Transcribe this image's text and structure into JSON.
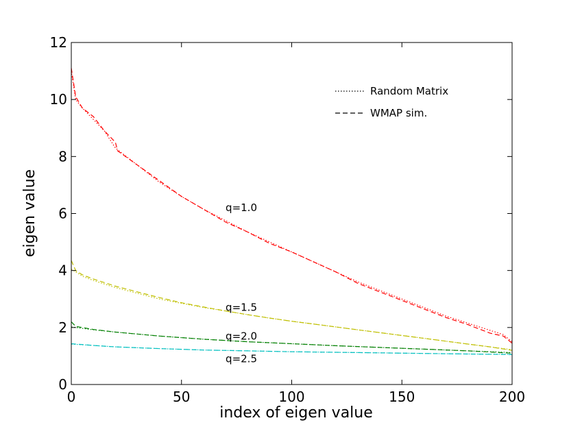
{
  "chart_data": {
    "type": "line",
    "title": "",
    "xlabel": "index of eigen value",
    "ylabel": "eigen value",
    "xlim": [
      0,
      200
    ],
    "ylim": [
      0,
      12
    ],
    "xticks": [
      "0",
      "50",
      "100",
      "150",
      "200"
    ],
    "yticks": [
      "0",
      "2",
      "4",
      "6",
      "8",
      "10",
      "12"
    ],
    "grid": false,
    "legend": {
      "position": "top-right",
      "entries": [
        {
          "label": "Random Matrix",
          "style": "dotted",
          "color": "#000000"
        },
        {
          "label": "WMAP sim.",
          "style": "dashed",
          "color": "#000000"
        }
      ]
    },
    "series": [
      {
        "name": "q=1.0 Random Matrix",
        "group": "q=1.0",
        "color": "#ff0000",
        "style": "dotted",
        "x": [
          0,
          2,
          5,
          10,
          15,
          20,
          30,
          40,
          50,
          60,
          70,
          80,
          90,
          100,
          110,
          120,
          130,
          140,
          150,
          160,
          170,
          180,
          190,
          196,
          200
        ],
        "y": [
          11.0,
          10.0,
          9.7,
          9.3,
          8.9,
          8.3,
          7.7,
          7.1,
          6.6,
          6.15,
          5.75,
          5.35,
          5.0,
          4.65,
          4.3,
          3.95,
          3.6,
          3.3,
          3.0,
          2.7,
          2.4,
          2.15,
          1.9,
          1.75,
          1.5
        ]
      },
      {
        "name": "q=1.0 WMAP sim.",
        "group": "q=1.0",
        "color": "#ff0000",
        "style": "dashed",
        "x": [
          0,
          1,
          2,
          5,
          10,
          15,
          20,
          21,
          30,
          40,
          50,
          60,
          70,
          80,
          90,
          100,
          110,
          120,
          130,
          140,
          150,
          160,
          170,
          180,
          190,
          196,
          200
        ],
        "y": [
          11.1,
          10.6,
          10.1,
          9.7,
          9.4,
          8.9,
          8.5,
          8.2,
          7.7,
          7.15,
          6.6,
          6.15,
          5.7,
          5.35,
          4.95,
          4.65,
          4.3,
          3.95,
          3.55,
          3.25,
          2.95,
          2.65,
          2.35,
          2.1,
          1.8,
          1.7,
          1.45
        ]
      },
      {
        "name": "q=1.5 Random Matrix",
        "group": "q=1.5",
        "color": "#bfbf00",
        "style": "dotted",
        "x": [
          0,
          5,
          10,
          20,
          30,
          40,
          50,
          60,
          70,
          80,
          90,
          100,
          110,
          120,
          130,
          140,
          150,
          160,
          170,
          180,
          190,
          200
        ],
        "y": [
          4.05,
          3.8,
          3.65,
          3.4,
          3.2,
          3.0,
          2.85,
          2.7,
          2.58,
          2.45,
          2.33,
          2.22,
          2.12,
          2.02,
          1.92,
          1.82,
          1.72,
          1.62,
          1.52,
          1.42,
          1.32,
          1.22
        ]
      },
      {
        "name": "q=1.5 WMAP sim.",
        "group": "q=1.5",
        "color": "#bfbf00",
        "style": "dashed",
        "x": [
          0,
          2,
          5,
          10,
          20,
          30,
          40,
          50,
          60,
          70,
          80,
          90,
          100,
          110,
          120,
          130,
          140,
          150,
          160,
          170,
          180,
          190,
          200
        ],
        "y": [
          4.35,
          4.0,
          3.85,
          3.7,
          3.45,
          3.25,
          3.05,
          2.87,
          2.72,
          2.58,
          2.45,
          2.33,
          2.22,
          2.12,
          2.02,
          1.92,
          1.82,
          1.72,
          1.62,
          1.52,
          1.42,
          1.32,
          1.2
        ]
      },
      {
        "name": "q=2.0 Random Matrix",
        "group": "q=2.0",
        "color": "#007f00",
        "style": "dotted",
        "x": [
          0,
          10,
          20,
          40,
          60,
          80,
          100,
          120,
          140,
          160,
          180,
          200
        ],
        "y": [
          2.02,
          1.92,
          1.84,
          1.7,
          1.59,
          1.5,
          1.43,
          1.36,
          1.3,
          1.24,
          1.18,
          1.12
        ]
      },
      {
        "name": "q=2.0 WMAP sim.",
        "group": "q=2.0",
        "color": "#007f00",
        "style": "dashed",
        "x": [
          0,
          2,
          10,
          20,
          40,
          60,
          80,
          100,
          120,
          140,
          160,
          180,
          200
        ],
        "y": [
          2.2,
          2.04,
          1.93,
          1.84,
          1.7,
          1.59,
          1.5,
          1.43,
          1.36,
          1.3,
          1.24,
          1.18,
          1.1
        ]
      },
      {
        "name": "q=2.5 Random Matrix",
        "group": "q=2.5",
        "color": "#00bfbf",
        "style": "dotted",
        "x": [
          0,
          10,
          20,
          40,
          60,
          80,
          100,
          120,
          140,
          160,
          180,
          200
        ],
        "y": [
          1.42,
          1.37,
          1.32,
          1.26,
          1.21,
          1.18,
          1.15,
          1.13,
          1.11,
          1.09,
          1.07,
          1.06
        ]
      },
      {
        "name": "q=2.5 WMAP sim.",
        "group": "q=2.5",
        "color": "#00bfbf",
        "style": "dashed",
        "x": [
          0,
          10,
          20,
          40,
          60,
          80,
          100,
          120,
          140,
          160,
          180,
          200
        ],
        "y": [
          1.43,
          1.37,
          1.32,
          1.26,
          1.21,
          1.18,
          1.15,
          1.13,
          1.11,
          1.09,
          1.07,
          1.05
        ]
      }
    ],
    "annotations": [
      {
        "text": "q=1.0",
        "x": 70,
        "y": 6.2
      },
      {
        "text": "q=1.5",
        "x": 70,
        "y": 2.7
      },
      {
        "text": "q=2.0",
        "x": 70,
        "y": 1.7
      },
      {
        "text": "q=2.5",
        "x": 70,
        "y": 0.9
      }
    ]
  }
}
